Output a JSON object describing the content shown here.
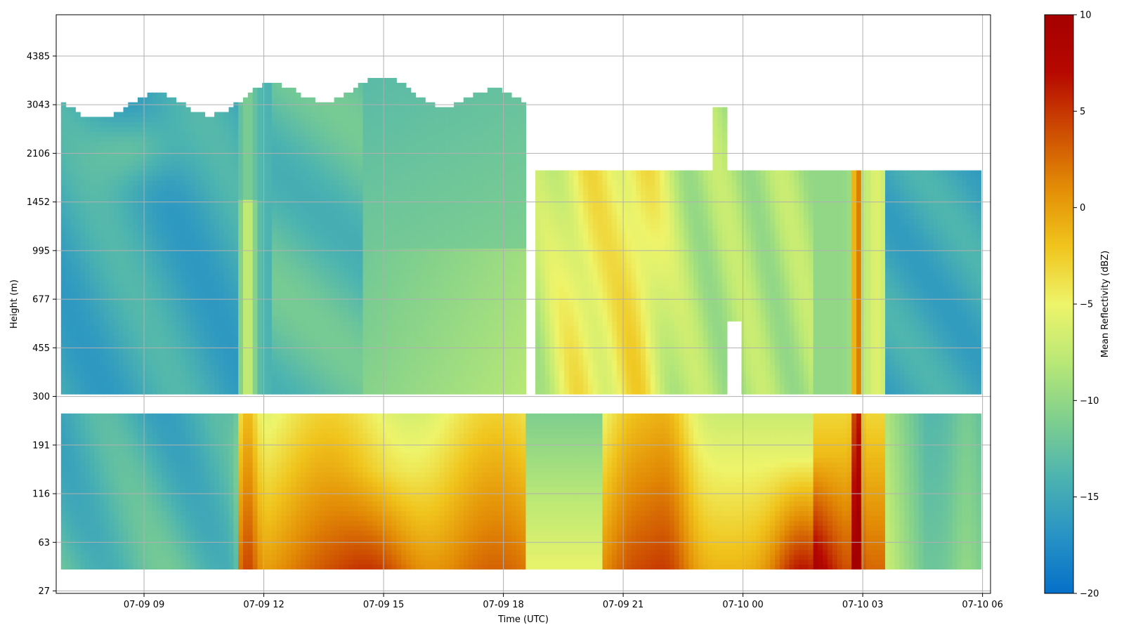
{
  "chart_data": {
    "type": "heatmap",
    "xlabel": "Time (UTC)",
    "ylabel": "Height (m)",
    "x_ticks": [
      "07-09 09",
      "07-09 12",
      "07-09 15",
      "07-09 18",
      "07-09 21",
      "07-10 00",
      "07-10 03",
      "07-10 06"
    ],
    "y_ticks": [
      "27",
      "63",
      "116",
      "191",
      "300",
      "455",
      "677",
      "995",
      "1452",
      "2106",
      "3043",
      "4385"
    ],
    "x_range_hours": [
      6.8,
      30.2
    ],
    "y_range_levels": [
      -0.05,
      11.85
    ],
    "grid": true,
    "colorbar": {
      "label": "Mean Reflectivity (dBZ)",
      "range": [
        -20,
        10
      ],
      "ticks": [
        "10",
        "5",
        "0",
        "−5",
        "−10",
        "−15",
        "−20"
      ],
      "tick_values": [
        10,
        5,
        0,
        -5,
        -10,
        -15,
        -20
      ],
      "colors": [
        "#0570c8",
        "#2893c5",
        "#4cb3b0",
        "#7fcf8e",
        "#b9e876",
        "#eef46a",
        "#f0c41c",
        "#e38d06",
        "#cd4c02",
        "#b60800",
        "#a50000"
      ]
    },
    "blocks": [
      {
        "t": [
          6.9,
          18.5
        ],
        "levels": [
          0.4,
          3.7
        ],
        "name": "lower-gate-morning"
      },
      {
        "t": [
          18.5,
          30.0
        ],
        "levels": [
          0.4,
          3.7
        ],
        "name": "lower-gate-evening"
      },
      {
        "t": [
          6.9,
          18.5
        ],
        "levels": [
          4.05,
          9.9
        ],
        "name": "upper-gate-morning"
      },
      {
        "t": [
          18.8,
          30.0
        ],
        "levels": [
          4.05,
          8.6
        ],
        "name": "upper-gate-evening"
      }
    ]
  }
}
